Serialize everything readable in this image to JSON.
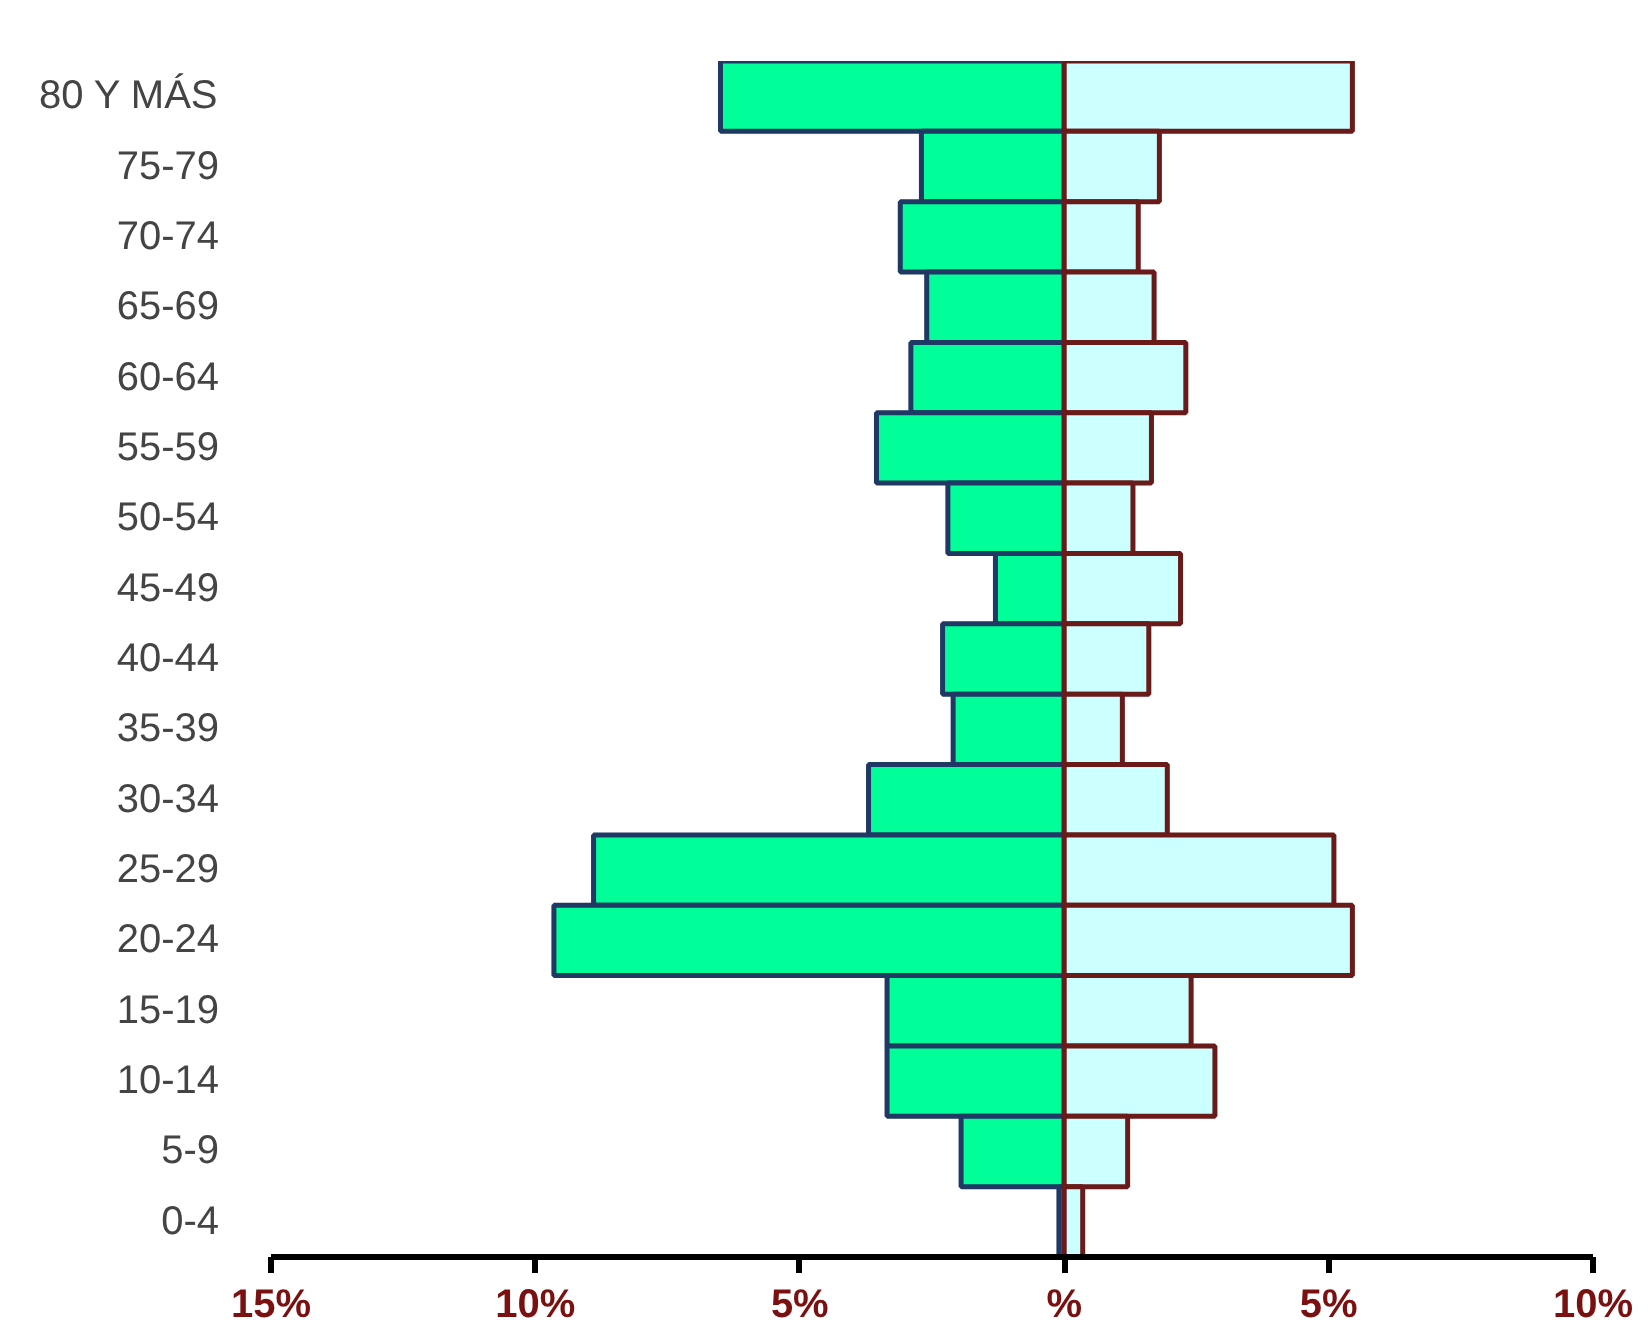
{
  "chart_data": {
    "type": "bar",
    "orientation": "horizontal",
    "stacked": true,
    "categories": [
      "80 Y MÁS",
      "75-79",
      "70-74",
      "65-69",
      "60-64",
      "55-59",
      "50-54",
      "45-49",
      "40-44",
      "35-39",
      "30-34",
      "25-29",
      "20-24",
      "15-19",
      "10-14",
      "5-9",
      "0-4"
    ],
    "series": [
      {
        "color": "#00ff99",
        "values": [
          -6.5,
          -2.7,
          -3.1,
          -2.6,
          -2.9,
          -3.55,
          -2.2,
          -1.3,
          -2.3,
          -2.1,
          -3.7,
          -8.9,
          -9.65,
          -3.35,
          -3.35,
          -1.95,
          -0.1
        ]
      },
      {
        "color": "#ccffff",
        "values": [
          5.45,
          1.8,
          1.4,
          1.7,
          2.3,
          1.65,
          1.3,
          2.2,
          1.6,
          1.1,
          1.95,
          5.1,
          5.45,
          2.4,
          2.85,
          1.2,
          0.35
        ]
      }
    ],
    "xlim": [
      -15,
      10
    ],
    "xticks": [
      {
        "value": -15,
        "label": "15%"
      },
      {
        "value": -10,
        "label": "10%"
      },
      {
        "value": -5,
        "label": "5%"
      },
      {
        "value": 0,
        "label": "%"
      },
      {
        "value": 5,
        "label": "5%"
      },
      {
        "value": 10,
        "label": "10%"
      }
    ],
    "grid": false,
    "legend": false
  }
}
